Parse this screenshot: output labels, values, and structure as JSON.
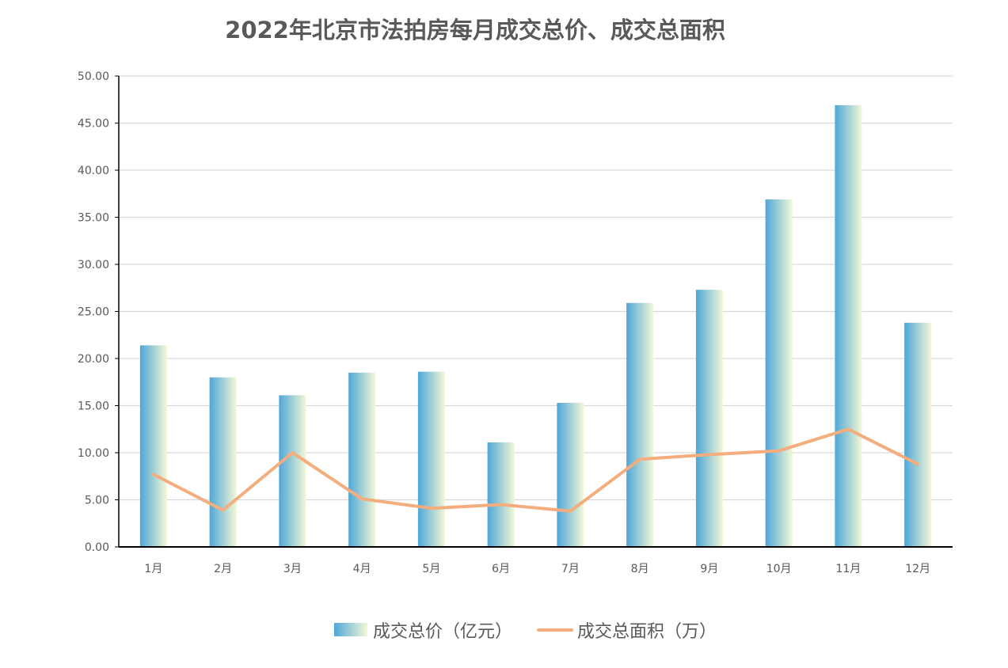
{
  "chart_data": {
    "type": "bar",
    "title": "2022年北京市法拍房每月成交总价、成交总面积",
    "categories": [
      "1月",
      "2月",
      "3月",
      "4月",
      "5月",
      "6月",
      "7月",
      "8月",
      "9月",
      "10月",
      "11月",
      "12月"
    ],
    "series": [
      {
        "name": "成交总价（亿元）",
        "kind": "bar",
        "values": [
          21.4,
          18.0,
          16.1,
          18.5,
          18.6,
          11.1,
          15.3,
          25.9,
          27.3,
          36.9,
          46.9,
          23.8
        ],
        "colors": {
          "start": "#4fa7d8",
          "end": "#f3f8d6"
        }
      },
      {
        "name": "成交总面积（万）",
        "kind": "line",
        "values": [
          7.7,
          3.9,
          10.0,
          5.1,
          4.1,
          4.5,
          3.8,
          9.3,
          9.8,
          10.2,
          12.5,
          8.8
        ],
        "color": "#f4ad7c"
      }
    ],
    "yaxis": {
      "min": 0,
      "max": 50,
      "step": 5,
      "tick_labels": [
        "0.00",
        "5.00",
        "10.00",
        "15.00",
        "20.00",
        "25.00",
        "30.00",
        "35.00",
        "40.00",
        "45.00",
        "50.00"
      ]
    },
    "xlabel": "",
    "ylabel": "",
    "grid": true,
    "legend": "bottom-center"
  }
}
